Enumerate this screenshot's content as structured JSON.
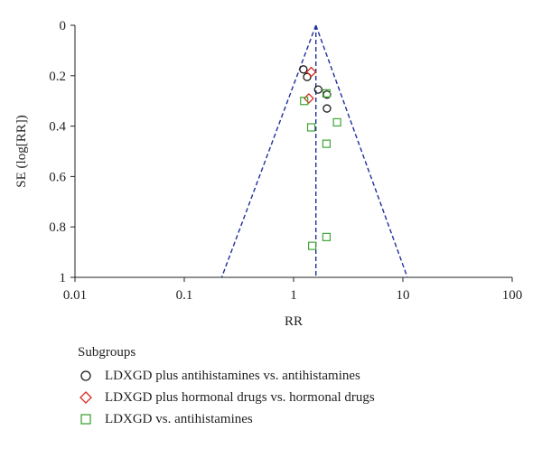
{
  "chart_data": {
    "type": "scatter",
    "xlabel": "RR",
    "ylabel": "SE (log[RR])",
    "x_scale": "log",
    "xlim": [
      0.01,
      100
    ],
    "ylim": [
      0,
      1
    ],
    "y_inverted": true,
    "x_ticks": [
      "0.01",
      "0.1",
      "1",
      "10",
      "100"
    ],
    "y_ticks": [
      "0",
      "0.2",
      "0.4",
      "0.6",
      "0.8",
      "1"
    ],
    "pooled_rr": 1.6,
    "funnel_apex_se": 0,
    "funnel_base": {
      "se": 1,
      "rr_low": 0.22,
      "rr_high": 11.0
    },
    "legend_title": "Subgroups",
    "series": [
      {
        "name": "LDXGD plus antihistamines vs. antihistamines",
        "marker": "circle",
        "color": "#1a1a1a",
        "points": [
          {
            "x": 1.23,
            "y": 0.175
          },
          {
            "x": 1.33,
            "y": 0.205
          },
          {
            "x": 1.68,
            "y": 0.255
          },
          {
            "x": 2.02,
            "y": 0.275
          },
          {
            "x": 2.02,
            "y": 0.33
          }
        ]
      },
      {
        "name": "LDXGD plus hormonal drugs vs. hormonal drugs",
        "marker": "diamond",
        "color": "#d62a1e",
        "points": [
          {
            "x": 1.45,
            "y": 0.185
          },
          {
            "x": 1.38,
            "y": 0.29
          }
        ]
      },
      {
        "name": "LDXGD vs. antihistamines",
        "marker": "square",
        "color": "#3fa535",
        "points": [
          {
            "x": 1.25,
            "y": 0.3
          },
          {
            "x": 2.0,
            "y": 0.27
          },
          {
            "x": 2.5,
            "y": 0.385
          },
          {
            "x": 1.45,
            "y": 0.405
          },
          {
            "x": 2.0,
            "y": 0.47
          },
          {
            "x": 2.0,
            "y": 0.84
          },
          {
            "x": 1.48,
            "y": 0.875
          }
        ]
      }
    ],
    "funnel_color": "#1f2f9c"
  }
}
